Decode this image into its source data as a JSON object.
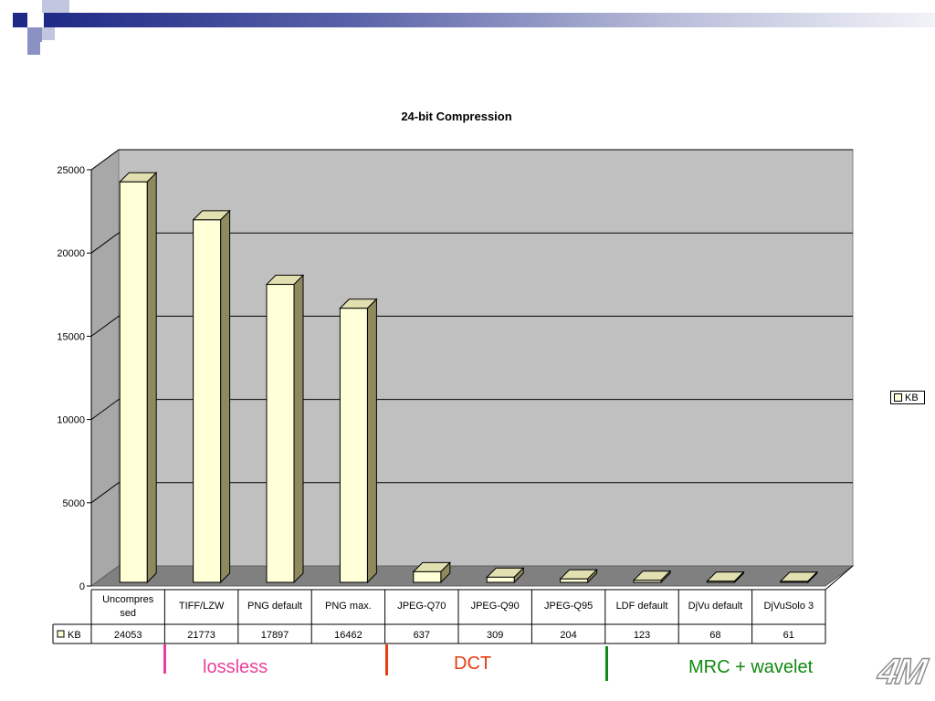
{
  "chart_data": {
    "type": "bar",
    "title": "24-bit Compression",
    "categories": [
      "Uncompres sed",
      "TIFF/LZW",
      "PNG default",
      "PNG max.",
      "JPEG-Q70",
      "JPEG-Q90",
      "JPEG-Q95",
      "LDF default",
      "DjVu default",
      "DjVuSolo 3"
    ],
    "category_lines": [
      [
        "Uncompres",
        "sed"
      ],
      [
        "TIFF/LZW"
      ],
      [
        "PNG default"
      ],
      [
        "PNG max."
      ],
      [
        "JPEG-Q70"
      ],
      [
        "JPEG-Q90"
      ],
      [
        "JPEG-Q95"
      ],
      [
        "LDF default"
      ],
      [
        "DjVu default"
      ],
      [
        "DjVuSolo 3"
      ]
    ],
    "series": [
      {
        "name": "KB",
        "values": [
          24053,
          21773,
          17897,
          16462,
          637,
          309,
          204,
          123,
          68,
          61
        ]
      }
    ],
    "ylim": [
      0,
      25000
    ],
    "yticks": [
      0,
      5000,
      10000,
      15000,
      20000,
      25000
    ],
    "grid": true,
    "legend": "right",
    "data_table": true,
    "three_d": true,
    "colors": {
      "bar_face": "#ffffd8",
      "bar_side": "#8e8a5e",
      "bar_top": "#e2e0b0",
      "wall": "#c0c0c0"
    }
  },
  "legend": {
    "label": "KB"
  },
  "groups": [
    {
      "label": "lossless",
      "color": "#e8409a"
    },
    {
      "label": "DCT",
      "color": "#e83c10"
    },
    {
      "label": "MRC + wavelet",
      "color": "#108a10"
    }
  ],
  "logo": {
    "text": "4M"
  }
}
